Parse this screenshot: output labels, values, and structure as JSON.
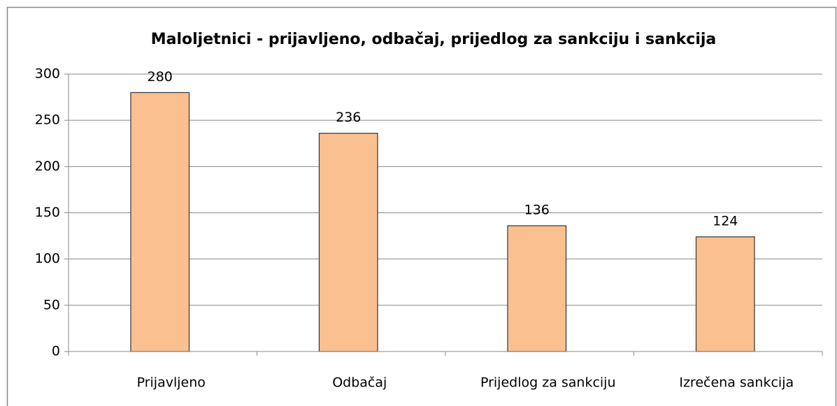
{
  "chart_data": {
    "type": "bar",
    "title": "Maloljetnici - prijavljeno, odbačaj, prijedlog za sankciju i sankcija",
    "categories": [
      "Prijavljeno",
      "Odbačaj",
      "Prijedlog za sankciju",
      "Izrečena sankcija"
    ],
    "values": [
      280,
      236,
      136,
      124
    ],
    "color": "#fac090",
    "ylim": [
      0,
      300
    ],
    "yticks": [
      0,
      50,
      100,
      150,
      200,
      250,
      300
    ],
    "grid": true
  }
}
